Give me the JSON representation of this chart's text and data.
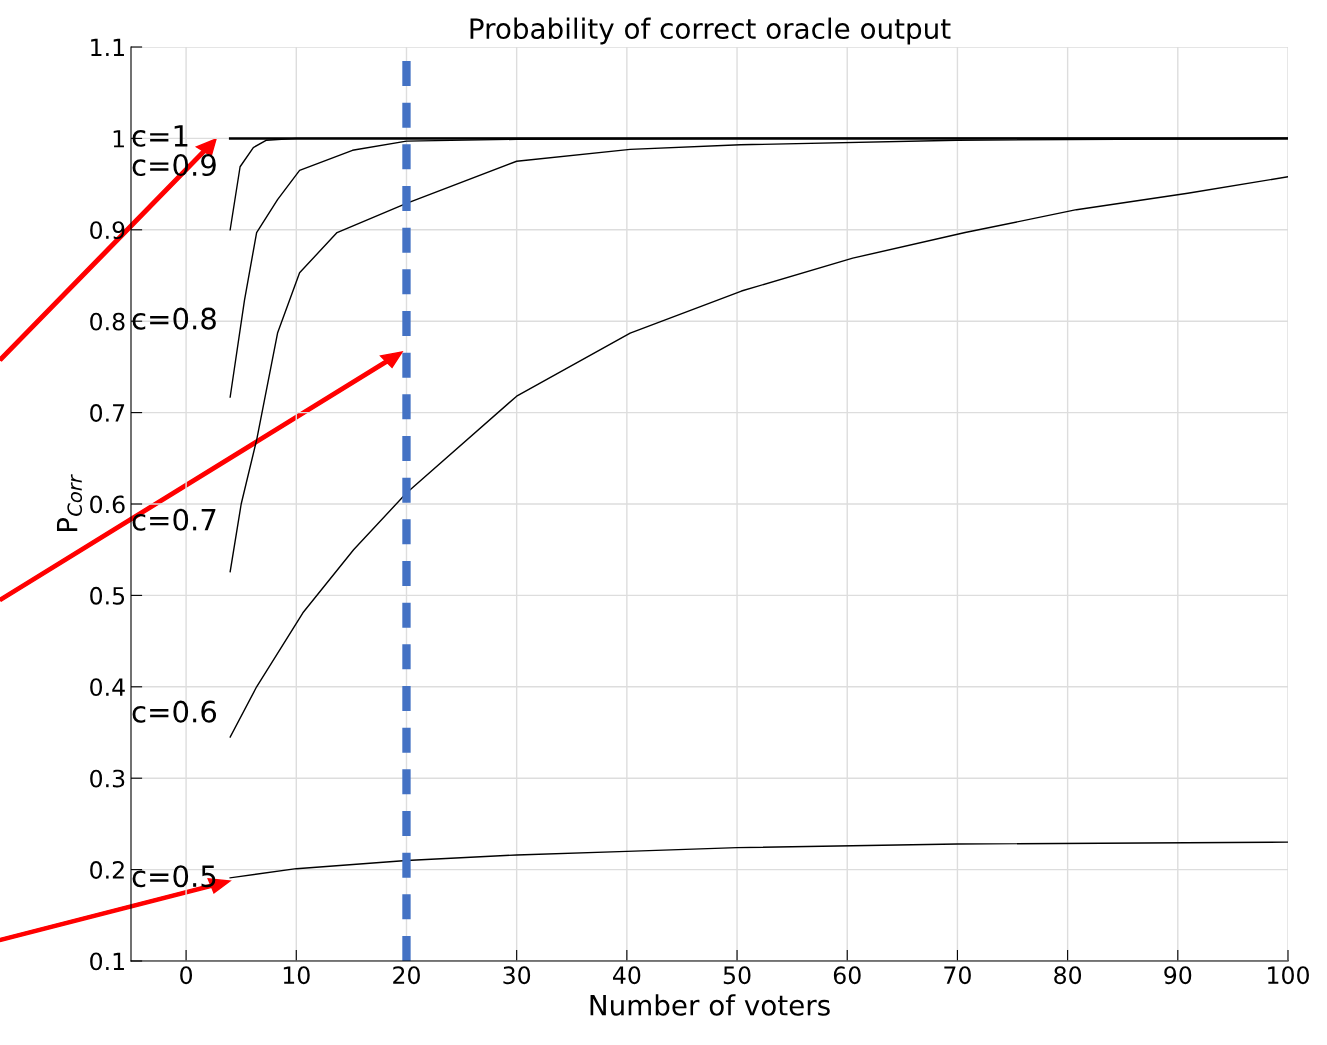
{
  "chart_data": {
    "type": "line",
    "title": "Probability of correct oracle output",
    "xlabel": "Number of voters",
    "ylabel": "P$_{Corr}$",
    "xlim": [
      -5,
      100
    ],
    "xticks": [
      0,
      10,
      20,
      30,
      40,
      50,
      60,
      70,
      80,
      90,
      100
    ],
    "ylim": [
      0.1,
      1.1
    ],
    "yticks": [
      0.1,
      0.2,
      0.3,
      0.4,
      0.5,
      0.6,
      0.7,
      0.8,
      0.9,
      1,
      1.1
    ],
    "grid": true,
    "legend": "left",
    "marker": "none",
    "line_style": "solid",
    "series": [
      {
        "name": "c=1",
        "color": "#000000",
        "x": [
          4,
          20,
          50,
          80,
          100
        ],
        "values": [
          1.0,
          1.0,
          1.0,
          1.0,
          1.0
        ]
      },
      {
        "name": "c=0.9",
        "color": "#000000",
        "x": [
          4,
          4.9,
          6.1,
          7.3,
          10,
          20,
          50,
          100
        ],
        "values": [
          0.9,
          0.969,
          0.99,
          0.998,
          1.0,
          1.0,
          1.0,
          1.0
        ]
      },
      {
        "name": "c=0.8",
        "color": "#000000",
        "x": [
          4,
          5.3,
          6.4,
          8.3,
          10.3,
          15.1,
          20,
          30,
          50,
          100
        ],
        "values": [
          0.717,
          0.823,
          0.897,
          0.933,
          0.965,
          0.987,
          0.997,
          0.999,
          1.0,
          1.0
        ]
      },
      {
        "name": "c=0.7",
        "color": "#000000",
        "x": [
          4,
          5,
          6.4,
          8.3,
          10.3,
          13.7,
          20,
          30,
          40.3,
          50.3,
          70,
          100
        ],
        "values": [
          0.526,
          0.6,
          0.67,
          0.787,
          0.853,
          0.897,
          0.929,
          0.975,
          0.988,
          0.993,
          0.998,
          1.0
        ]
      },
      {
        "name": "c=0.6",
        "color": "#000000",
        "x": [
          4,
          6.4,
          10.6,
          15.2,
          20,
          30,
          40.3,
          50.4,
          60.5,
          70.7,
          80.8,
          90.9,
          100
        ],
        "values": [
          0.345,
          0.4,
          0.481,
          0.55,
          0.612,
          0.718,
          0.787,
          0.833,
          0.869,
          0.897,
          0.922,
          0.94,
          0.958
        ]
      },
      {
        "name": "c=0.5",
        "color": "#000000",
        "x": [
          4,
          10,
          20,
          30,
          40,
          50,
          70,
          100
        ],
        "values": [
          0.191,
          0.201,
          0.21,
          0.216,
          0.22,
          0.224,
          0.228,
          0.23
        ]
      }
    ],
    "ref_lines": [
      {
        "axis": "x",
        "value": 20,
        "color": "#4472c4",
        "line_style": "dashed"
      }
    ]
  }
}
